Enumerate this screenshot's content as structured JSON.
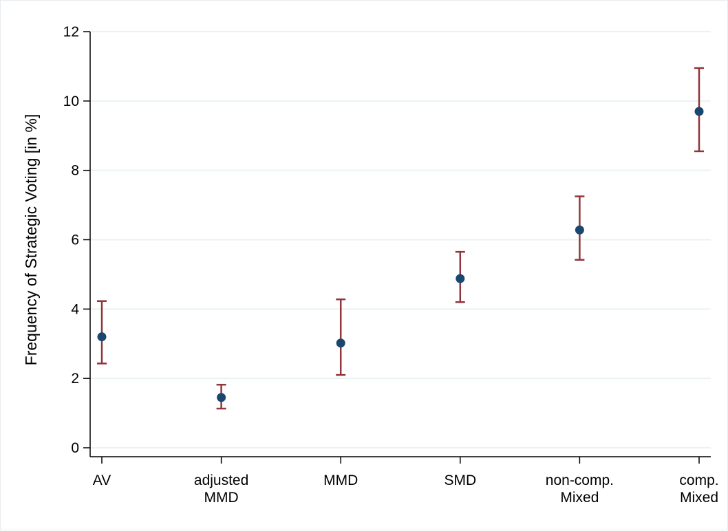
{
  "chart_data": {
    "type": "scatter",
    "title": "",
    "xlabel": "",
    "ylabel": "Frequency of Strategic Voting [in %]",
    "ylim": [
      0,
      12
    ],
    "yticks": [
      0,
      2,
      4,
      6,
      8,
      10,
      12
    ],
    "grid": true,
    "categories": [
      [
        "AV"
      ],
      [
        "adjusted",
        "MMD"
      ],
      [
        "MMD"
      ],
      [
        "SMD"
      ],
      [
        "non-comp.",
        "Mixed"
      ],
      [
        "comp.",
        "Mixed"
      ]
    ],
    "series": [
      {
        "values": [
          3.2,
          1.45,
          3.02,
          4.88,
          6.28,
          9.7
        ],
        "ci_lower": [
          2.43,
          1.13,
          2.1,
          4.2,
          5.42,
          8.55
        ],
        "ci_upper": [
          4.23,
          1.82,
          4.28,
          5.65,
          7.25,
          10.95
        ]
      }
    ],
    "colors": {
      "point": "#1a476f",
      "error_bar": "#90353b",
      "grid": "#eaf2f3",
      "axis": "#000000"
    }
  }
}
